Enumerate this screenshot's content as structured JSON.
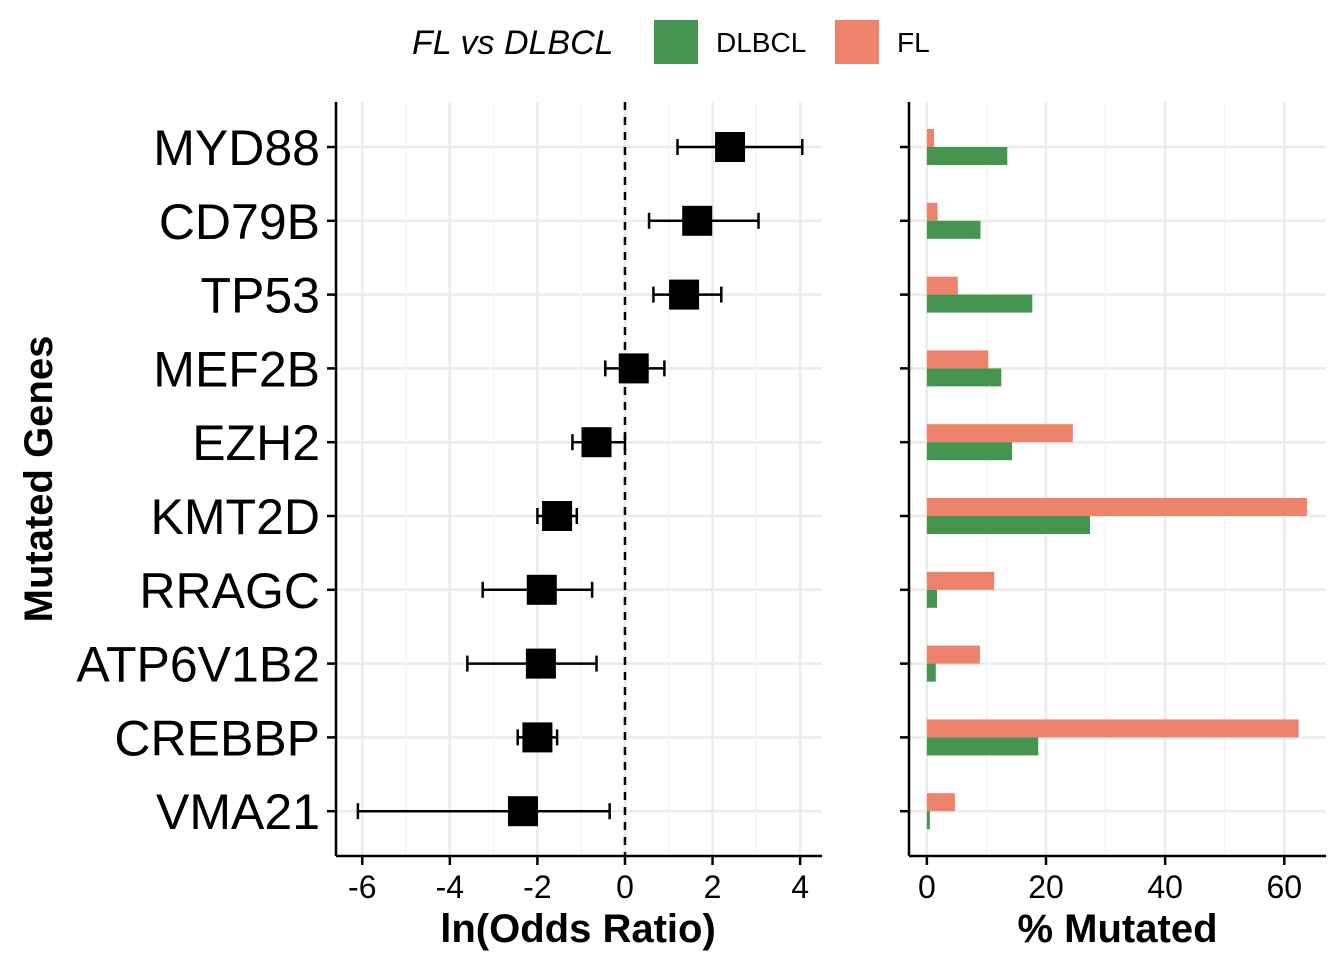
{
  "legend": {
    "title": "FL vs DLBCL",
    "entries": [
      {
        "label": "DLBCL",
        "color": "#459550"
      },
      {
        "label": "FL",
        "color": "#ED836B"
      }
    ]
  },
  "chart_data": [
    {
      "type": "scatter",
      "subtype": "forest-plot",
      "xlabel": "ln(Odds Ratio)",
      "ylabel": "Mutated Genes",
      "xlim": [
        -6.6,
        4.5
      ],
      "xticks": [
        -6,
        -4,
        -2,
        0,
        2,
        4
      ],
      "reference_line": 0,
      "grid": true,
      "categories": [
        "MYD88",
        "CD79B",
        "TP53",
        "MEF2B",
        "EZH2",
        "KMT2D",
        "RRAGC",
        "ATP6V1B2",
        "CREBBP",
        "VMA21"
      ],
      "estimate": [
        2.4,
        1.65,
        1.35,
        0.2,
        -0.65,
        -1.55,
        -1.9,
        -1.92,
        -2.0,
        -2.33
      ],
      "lower": [
        1.2,
        0.55,
        0.65,
        -0.45,
        -1.2,
        -2.0,
        -3.25,
        -3.6,
        -2.45,
        -6.1
      ],
      "upper": [
        4.05,
        3.05,
        2.2,
        0.9,
        0.0,
        -1.1,
        -0.75,
        -0.65,
        -1.55,
        -0.35
      ]
    },
    {
      "type": "bar",
      "orientation": "horizontal",
      "xlabel": "% Mutated",
      "xlim": [
        -3,
        67
      ],
      "xticks": [
        0,
        20,
        40,
        60
      ],
      "grid": true,
      "categories": [
        "MYD88",
        "CD79B",
        "TP53",
        "MEF2B",
        "EZH2",
        "KMT2D",
        "RRAGC",
        "ATP6V1B2",
        "CREBBP",
        "VMA21"
      ],
      "series": [
        {
          "name": "FL",
          "color": "#ED836B",
          "values": [
            1.2,
            1.8,
            5.2,
            10.3,
            24.5,
            63.8,
            11.3,
            8.9,
            62.4,
            4.7
          ]
        },
        {
          "name": "DLBCL",
          "color": "#459550",
          "values": [
            13.5,
            9.0,
            17.7,
            12.5,
            14.3,
            27.4,
            1.7,
            1.5,
            18.7,
            0.5
          ]
        }
      ]
    }
  ]
}
